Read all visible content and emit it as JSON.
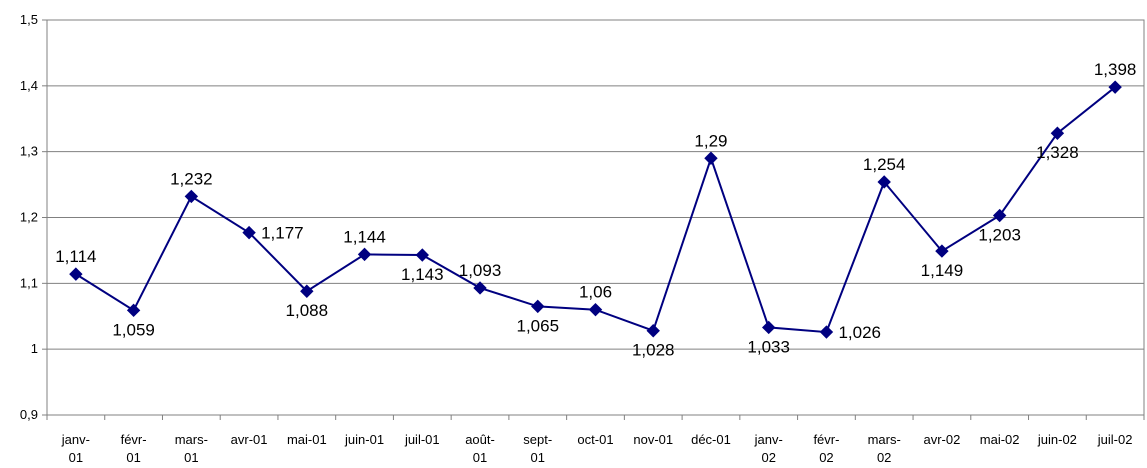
{
  "chart_data": {
    "type": "line",
    "categories": [
      [
        "janv-",
        "01"
      ],
      [
        "févr-",
        "01"
      ],
      [
        "mars-",
        "01"
      ],
      [
        "avr-01"
      ],
      [
        "mai-01"
      ],
      [
        "juin-01"
      ],
      [
        "juil-01"
      ],
      [
        "août-",
        "01"
      ],
      [
        "sept-",
        "01"
      ],
      [
        "oct-01"
      ],
      [
        "nov-01"
      ],
      [
        "déc-01"
      ],
      [
        "janv-",
        "02"
      ],
      [
        "févr-",
        "02"
      ],
      [
        "mars-",
        "02"
      ],
      [
        "avr-02"
      ],
      [
        "mai-02"
      ],
      [
        "juin-02"
      ],
      [
        "juil-02"
      ]
    ],
    "values": [
      1.114,
      1.059,
      1.232,
      1.177,
      1.088,
      1.144,
      1.143,
      1.093,
      1.065,
      1.06,
      1.028,
      1.29,
      1.033,
      1.026,
      1.254,
      1.149,
      1.203,
      1.328,
      1.398
    ],
    "data_labels": [
      "1,114",
      "1,059",
      "1,232",
      "1,177",
      "1,088",
      "1,144",
      "1,143",
      "1,093",
      "1,065",
      "1,06",
      "1,028",
      "1,29",
      "1,033",
      "1,026",
      "1,254",
      "1,149",
      "1,203",
      "1,328",
      "1,398"
    ],
    "label_positions": [
      "above",
      "below",
      "above",
      "right",
      "below",
      "above",
      "below",
      "above",
      "below",
      "above",
      "below",
      "above",
      "below",
      "right",
      "above",
      "below",
      "below",
      "below",
      "above"
    ],
    "ylim": [
      0.9,
      1.5
    ],
    "yticks": [
      0.9,
      1.0,
      1.1,
      1.2,
      1.3,
      1.4,
      1.5
    ],
    "ytick_labels": [
      "0,9",
      "1",
      "1,1",
      "1,2",
      "1,3",
      "1,4",
      "1,5"
    ],
    "grid": true,
    "title": "",
    "xlabel": "",
    "ylabel": "",
    "series_color": "#000080",
    "grid_color": "#808080"
  }
}
